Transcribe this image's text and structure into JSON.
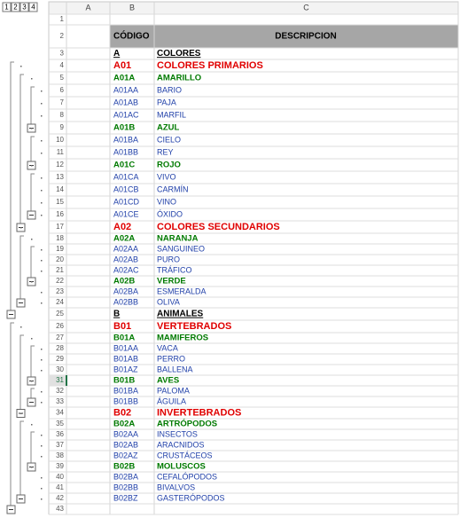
{
  "outline_buttons": [
    "1",
    "2",
    "3",
    "4"
  ],
  "columns": [
    "A",
    "B",
    "C"
  ],
  "row_numbers": [
    1,
    2,
    3,
    4,
    5,
    6,
    7,
    8,
    9,
    10,
    11,
    12,
    13,
    14,
    15,
    16,
    17,
    18,
    19,
    20,
    21,
    22,
    23,
    24,
    25,
    26,
    27,
    28,
    29,
    30,
    31,
    32,
    33,
    34,
    35,
    36,
    37,
    38,
    39,
    40,
    41,
    42,
    43
  ],
  "header": {
    "code": "CÓDIGO",
    "description": "DESCRIPCION"
  },
  "rows": [
    {
      "code": "A",
      "desc": "COLORES"
    },
    {
      "code": "A01",
      "desc": "COLORES PRIMARIOS"
    },
    {
      "code": "A01A",
      "desc": "AMARILLO"
    },
    {
      "code": "A01AA",
      "desc": "BARIO"
    },
    {
      "code": "A01AB",
      "desc": "PAJA"
    },
    {
      "code": "A01AC",
      "desc": "MARFIL"
    },
    {
      "code": "A01B",
      "desc": "AZUL"
    },
    {
      "code": "A01BA",
      "desc": "CIELO"
    },
    {
      "code": "A01BB",
      "desc": "REY"
    },
    {
      "code": "A01C",
      "desc": "ROJO"
    },
    {
      "code": "A01CA",
      "desc": "VIVO"
    },
    {
      "code": "A01CB",
      "desc": "CARMÍN"
    },
    {
      "code": "A01CD",
      "desc": "VINO"
    },
    {
      "code": "A01CE",
      "desc": "ÓXIDO"
    },
    {
      "code": "A02",
      "desc": "COLORES SECUNDARIOS"
    },
    {
      "code": "A02A",
      "desc": "NARANJA"
    },
    {
      "code": "A02AA",
      "desc": "SANGUINEO"
    },
    {
      "code": "A02AB",
      "desc": "PURO"
    },
    {
      "code": "A02AC",
      "desc": "TRÁFICO"
    },
    {
      "code": "A02B",
      "desc": "VERDE"
    },
    {
      "code": "A02BA",
      "desc": "ESMERALDA"
    },
    {
      "code": "A02BB",
      "desc": "OLIVA"
    },
    {
      "code": "B",
      "desc": "ANIMALES"
    },
    {
      "code": "B01",
      "desc": "VERTEBRADOS"
    },
    {
      "code": "B01A",
      "desc": "MAMIFEROS"
    },
    {
      "code": "B01AA",
      "desc": "VACA"
    },
    {
      "code": "B01AB",
      "desc": "PERRO"
    },
    {
      "code": "B01AZ",
      "desc": "BALLENA"
    },
    {
      "code": "B01B",
      "desc": "AVES"
    },
    {
      "code": "B01BA",
      "desc": "PALOMA"
    },
    {
      "code": "B01BB",
      "desc": "ÁGUILA"
    },
    {
      "code": "B02",
      "desc": "INVERTEBRADOS"
    },
    {
      "code": "B02A",
      "desc": "ARTRÓPODOS"
    },
    {
      "code": "B02AA",
      "desc": "INSECTOS"
    },
    {
      "code": "B02AB",
      "desc": "ARACNIDOS"
    },
    {
      "code": "B02AZ",
      "desc": "CRUSTÁCEOS"
    },
    {
      "code": "B02B",
      "desc": "MOLUSCOS"
    },
    {
      "code": "B02BA",
      "desc": "CEFALÓPODOS"
    },
    {
      "code": "B02BB",
      "desc": "BIVALVOS"
    },
    {
      "code": "B02BZ",
      "desc": "GASTERÓPODOS"
    }
  ]
}
